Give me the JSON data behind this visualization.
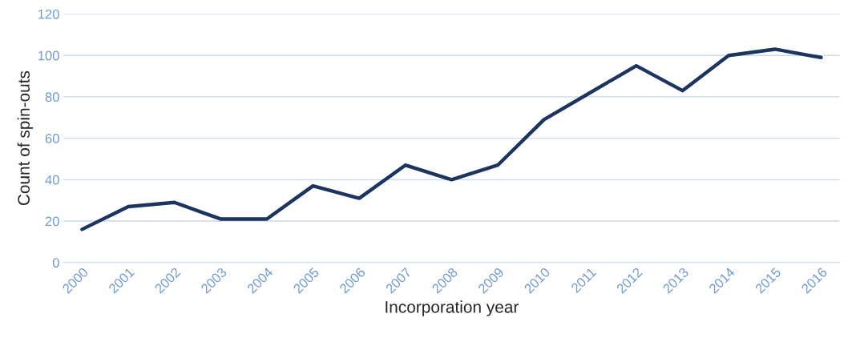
{
  "chart_data": {
    "type": "line",
    "xlabel": "Incorporation year",
    "ylabel": "Count of spin-outs",
    "categories": [
      "2000",
      "2001",
      "2002",
      "2003",
      "2004",
      "2005",
      "2006",
      "2007",
      "2008",
      "2009",
      "2010",
      "2011",
      "2012",
      "2013",
      "2014",
      "2015",
      "2016"
    ],
    "series": [
      {
        "color": "#1c355e",
        "values": [
          16,
          27,
          29,
          21,
          21,
          37,
          31,
          47,
          40,
          47,
          69,
          82,
          95,
          83,
          100,
          103,
          99
        ]
      }
    ],
    "ylim": [
      0,
      120
    ],
    "yticks": [
      0,
      20,
      40,
      60,
      80,
      100,
      120
    ],
    "grid": "y",
    "legend": false,
    "marker": "none",
    "line_style": "solid"
  }
}
